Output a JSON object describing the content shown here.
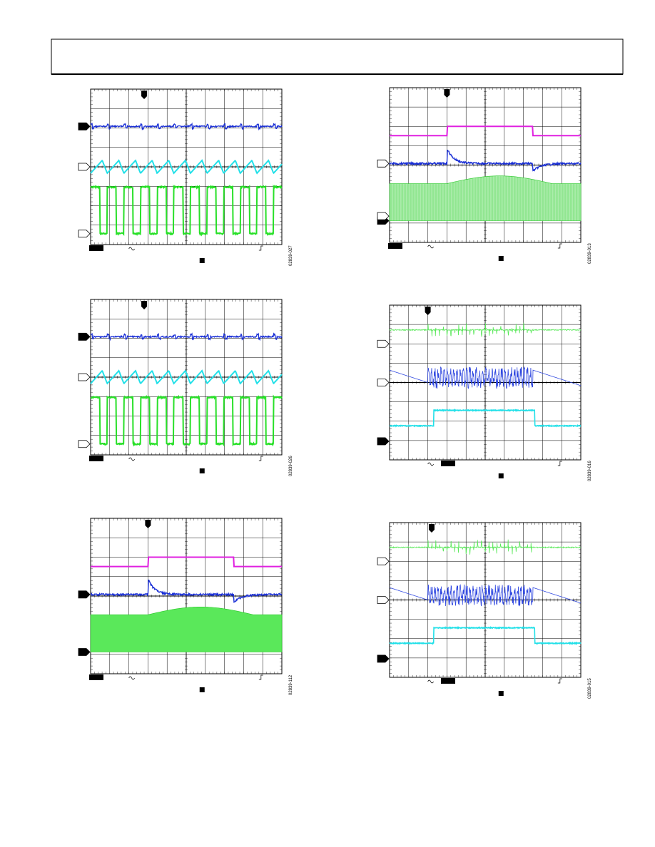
{
  "figures": [
    {
      "code": "02839-027"
    },
    {
      "code": "02839-013"
    },
    {
      "code": "02839-026"
    },
    {
      "code": "02839-016"
    },
    {
      "code": "02839-112"
    },
    {
      "code": "02839-015"
    }
  ]
}
